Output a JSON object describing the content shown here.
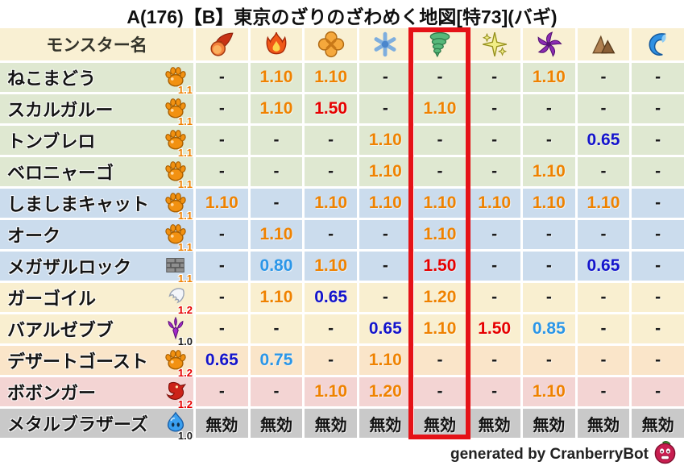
{
  "title": "A(176)【B】東京のざりのざわめく地図[特73](バギ)",
  "footer": {
    "credit": "generated by CranberryBot",
    "icon": "cranberry-icon"
  },
  "colors": {
    "value_up": "#ef8200",
    "value_big_up": "#e60000",
    "value_down": "#2a96e8",
    "value_big_down": "#1414cc",
    "highlight_box": "#e51217"
  },
  "chart_data": {
    "type": "table",
    "title": "A(176)【B】東京のざりのざわめく地図[特73](バギ)",
    "name_header": "モンスター名",
    "columns": [
      {
        "id": "fire",
        "icon": "fireball-icon"
      },
      {
        "id": "flame",
        "icon": "flame-icon"
      },
      {
        "id": "explosion",
        "icon": "explosion-icon"
      },
      {
        "id": "ice",
        "icon": "ice-icon"
      },
      {
        "id": "wind",
        "icon": "tornado-icon"
      },
      {
        "id": "light",
        "icon": "light-icon"
      },
      {
        "id": "dark",
        "icon": "dark-icon"
      },
      {
        "id": "earth",
        "icon": "earth-icon"
      },
      {
        "id": "water",
        "icon": "water-icon"
      }
    ],
    "highlighted_column_id": "wind",
    "rows": [
      {
        "name": "ねこまどう",
        "family_icon": "paw-icon",
        "multiplier": "1.1",
        "multiplier_color": "orange",
        "group": "green",
        "values": [
          "-",
          "1.10",
          "1.10",
          "-",
          "-",
          "-",
          "1.10",
          "-",
          "-"
        ],
        "value_colors": [
          "none",
          "up",
          "up",
          "none",
          "none",
          "none",
          "up",
          "none",
          "none"
        ]
      },
      {
        "name": "スカルガルー",
        "family_icon": "paw-icon",
        "multiplier": "1.1",
        "multiplier_color": "orange",
        "group": "green",
        "values": [
          "-",
          "1.10",
          "1.50",
          "-",
          "1.10",
          "-",
          "-",
          "-",
          "-"
        ],
        "value_colors": [
          "none",
          "up",
          "big-up",
          "none",
          "up",
          "none",
          "none",
          "none",
          "none"
        ]
      },
      {
        "name": "トンブレロ",
        "family_icon": "paw-icon",
        "multiplier": "1.1",
        "multiplier_color": "orange",
        "group": "green",
        "values": [
          "-",
          "-",
          "-",
          "1.10",
          "-",
          "-",
          "-",
          "0.65",
          "-"
        ],
        "value_colors": [
          "none",
          "none",
          "none",
          "up",
          "none",
          "none",
          "none",
          "big-down",
          "none"
        ]
      },
      {
        "name": "ベロニャーゴ",
        "family_icon": "paw-icon",
        "multiplier": "1.1",
        "multiplier_color": "orange",
        "group": "green",
        "values": [
          "-",
          "-",
          "-",
          "1.10",
          "-",
          "-",
          "1.10",
          "-",
          "-"
        ],
        "value_colors": [
          "none",
          "none",
          "none",
          "up",
          "none",
          "none",
          "up",
          "none",
          "none"
        ]
      },
      {
        "name": "しましまキャット",
        "family_icon": "paw-icon",
        "multiplier": "1.1",
        "multiplier_color": "orange",
        "group": "blue",
        "values": [
          "1.10",
          "-",
          "1.10",
          "1.10",
          "1.10",
          "1.10",
          "1.10",
          "1.10",
          "-"
        ],
        "value_colors": [
          "up",
          "none",
          "up",
          "up",
          "up",
          "up",
          "up",
          "up",
          "none"
        ]
      },
      {
        "name": "オーク",
        "family_icon": "paw-icon",
        "multiplier": "1.1",
        "multiplier_color": "orange",
        "group": "blue",
        "values": [
          "-",
          "1.10",
          "-",
          "-",
          "1.10",
          "-",
          "-",
          "-",
          "-"
        ],
        "value_colors": [
          "none",
          "up",
          "none",
          "none",
          "up",
          "none",
          "none",
          "none",
          "none"
        ]
      },
      {
        "name": "メガザルロック",
        "family_icon": "brick-icon",
        "multiplier": "1.1",
        "multiplier_color": "orange",
        "group": "blue",
        "values": [
          "-",
          "0.80",
          "1.10",
          "-",
          "1.50",
          "-",
          "-",
          "0.65",
          "-"
        ],
        "value_colors": [
          "none",
          "down",
          "up",
          "none",
          "big-up",
          "none",
          "none",
          "big-down",
          "none"
        ]
      },
      {
        "name": "ガーゴイル",
        "family_icon": "wing-icon",
        "multiplier": "1.2",
        "multiplier_color": "red",
        "group": "cream",
        "values": [
          "-",
          "1.10",
          "0.65",
          "-",
          "1.20",
          "-",
          "-",
          "-",
          "-"
        ],
        "value_colors": [
          "none",
          "up",
          "big-down",
          "none",
          "up",
          "none",
          "none",
          "none",
          "none"
        ]
      },
      {
        "name": "バアルゼブブ",
        "family_icon": "demon-icon",
        "multiplier": "1.0",
        "multiplier_color": "black",
        "group": "cream",
        "values": [
          "-",
          "-",
          "-",
          "0.65",
          "1.10",
          "1.50",
          "0.85",
          "-",
          "-"
        ],
        "value_colors": [
          "none",
          "none",
          "none",
          "big-down",
          "up",
          "big-up",
          "down",
          "none",
          "none"
        ]
      },
      {
        "name": "デザートゴースト",
        "family_icon": "paw-icon",
        "multiplier": "1.2",
        "multiplier_color": "red",
        "group": "peach",
        "values": [
          "0.65",
          "0.75",
          "-",
          "1.10",
          "-",
          "-",
          "-",
          "-",
          "-"
        ],
        "value_colors": [
          "big-down",
          "down",
          "none",
          "up",
          "none",
          "none",
          "none",
          "none",
          "none"
        ]
      },
      {
        "name": "ボボンガー",
        "family_icon": "dragon-icon",
        "multiplier": "1.2",
        "multiplier_color": "red",
        "group": "pink",
        "values": [
          "-",
          "-",
          "1.10",
          "1.20",
          "-",
          "-",
          "1.10",
          "-",
          "-"
        ],
        "value_colors": [
          "none",
          "none",
          "up",
          "up",
          "none",
          "none",
          "up",
          "none",
          "none"
        ]
      },
      {
        "name": "メタルブラザーズ",
        "family_icon": "slime-icon",
        "multiplier": "1.0",
        "multiplier_color": "black",
        "group": "gray",
        "values": [
          "無効",
          "無効",
          "無効",
          "無効",
          "無効",
          "無効",
          "無効",
          "無効",
          "無効"
        ],
        "value_colors": [
          "nullify",
          "nullify",
          "nullify",
          "nullify",
          "nullify",
          "nullify",
          "nullify",
          "nullify",
          "nullify"
        ]
      }
    ]
  }
}
